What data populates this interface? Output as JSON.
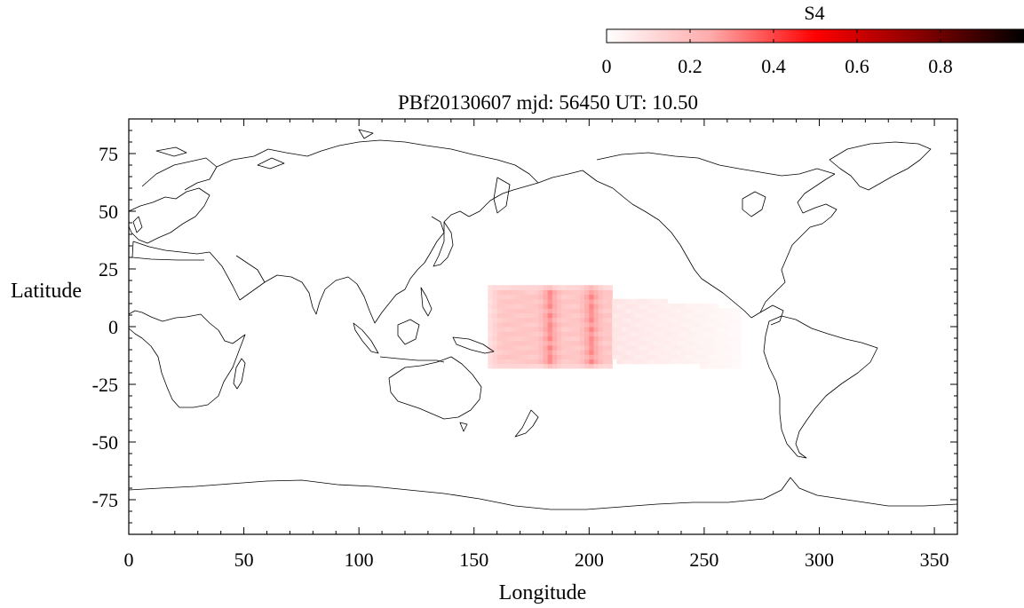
{
  "chart_data": {
    "type": "heatmap",
    "title": "PBf20130607  mjd: 56450  UT:  10.50",
    "xlabel": "Longitude",
    "ylabel": "Latitude",
    "xlim": [
      0,
      360
    ],
    "ylim": [
      -90,
      90
    ],
    "x_ticks": [
      0,
      50,
      100,
      150,
      200,
      250,
      300,
      350
    ],
    "y_ticks": [
      75,
      50,
      25,
      0,
      -25,
      -50,
      -75
    ],
    "x_tick_labels": [
      "0",
      "50",
      "100",
      "150",
      "200",
      "250",
      "300",
      "350"
    ],
    "y_tick_labels": [
      "75",
      "50",
      "25",
      "0",
      "-25",
      "-50",
      "-75"
    ],
    "colorbar": {
      "label": "S4",
      "range": [
        0,
        1
      ],
      "ticks": [
        0,
        0.2,
        0.4,
        0.6,
        0.8
      ],
      "tick_labels": [
        "0",
        "0.2",
        "0.4",
        "0.6",
        "0.8"
      ],
      "colormap": [
        "#ffffff",
        "#ffaaaa",
        "#ff0000",
        "#880000",
        "#000000"
      ]
    },
    "cell_size_deg": [
      2,
      2
    ],
    "s4_core": {
      "lon_start": 156,
      "lon_end": 210,
      "lat_start": -18,
      "lat_end": 18,
      "base_s4": 0.16,
      "band_centers_lon": [
        183,
        201
      ],
      "band_peak_s4": 0.28,
      "edge_s4": 0.05
    },
    "s4_tail": {
      "lon_start": 210,
      "lon_end": 266,
      "lat_top_start": 12,
      "lat_top_end": 7,
      "lat_bot_start": -14,
      "lat_bot_end": -17,
      "s4_start": 0.07,
      "s4_end": 0.015
    },
    "map": {
      "coastline_color": "#000000",
      "background": "#ffffff"
    }
  }
}
